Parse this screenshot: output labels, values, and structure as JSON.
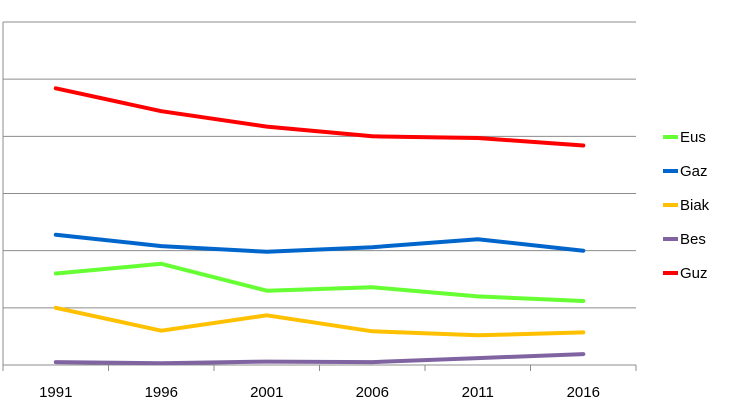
{
  "chart_data": {
    "type": "line",
    "x": [
      "1991",
      "1996",
      "2001",
      "2006",
      "2011",
      "2016"
    ],
    "ylim": [
      0,
      6
    ],
    "grid": true,
    "legend_position": "right",
    "series": [
      {
        "name": "Eus",
        "color": "#66ff33",
        "values": [
          1.6,
          1.77,
          1.3,
          1.36,
          1.2,
          1.12
        ]
      },
      {
        "name": "Gaz",
        "color": "#0066cc",
        "values": [
          2.28,
          2.08,
          1.98,
          2.06,
          2.2,
          2.0
        ]
      },
      {
        "name": "Biak",
        "color": "#ffc000",
        "values": [
          1.0,
          0.6,
          0.87,
          0.59,
          0.52,
          0.57
        ]
      },
      {
        "name": "Bes",
        "color": "#8064a2",
        "values": [
          0.05,
          0.03,
          0.06,
          0.05,
          0.12,
          0.19
        ]
      },
      {
        "name": "Guz",
        "color": "#ff0000",
        "values": [
          4.84,
          4.44,
          4.17,
          4.0,
          3.97,
          3.84
        ]
      }
    ]
  }
}
